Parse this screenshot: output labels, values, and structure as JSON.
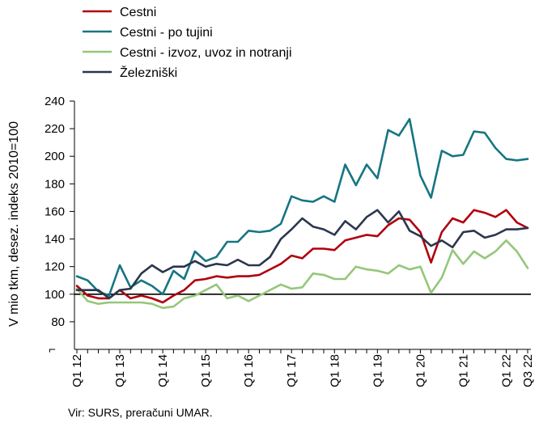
{
  "chart_data": {
    "type": "line",
    "ylabel": "V mio tkm, desez. indeks 2010=100",
    "ylim": [
      60,
      240
    ],
    "yticks": [
      80,
      100,
      120,
      140,
      160,
      180,
      200,
      220,
      240
    ],
    "ytick_labels": [
      "80",
      "100",
      "120",
      "140",
      "160",
      "180",
      "200",
      "220",
      "240"
    ],
    "y_break_symbol": "⌐",
    "x_tick_labels": [
      "Q1 12",
      "Q1 13",
      "Q1 14",
      "Q1 15",
      "Q1 16",
      "Q1 17",
      "Q1 18",
      "Q1 19",
      "Q1 20",
      "Q1 21",
      "Q1 22",
      "Q3 22"
    ],
    "x_tick_index": [
      0,
      4,
      8,
      12,
      16,
      20,
      24,
      28,
      32,
      36,
      40,
      42
    ],
    "n_points": 43,
    "reference_line": 100,
    "legend_position": "top-left",
    "series": [
      {
        "name": "Cestni",
        "color": "#b0000d",
        "values": [
          106,
          99,
          97,
          97,
          103,
          97,
          99,
          97,
          94,
          99,
          103,
          110,
          111,
          113,
          112,
          113,
          113,
          114,
          118,
          122,
          128,
          126,
          133,
          133,
          132,
          139,
          141,
          143,
          142,
          150,
          155,
          154,
          145,
          123,
          145,
          155,
          152,
          161,
          159,
          156,
          161,
          152,
          148
        ]
      },
      {
        "name": "Cestni - po tujini",
        "color": "#177583",
        "values": [
          113,
          110,
          102,
          99,
          121,
          105,
          110,
          106,
          100,
          117,
          111,
          131,
          124,
          127,
          138,
          138,
          146,
          145,
          146,
          151,
          171,
          168,
          167,
          171,
          167,
          194,
          179,
          194,
          184,
          219,
          215,
          227,
          186,
          170,
          204,
          200,
          201,
          218,
          217,
          206,
          198,
          197,
          198
        ]
      },
      {
        "name": "Cestni - izvoz, uvoz in notranji",
        "color": "#94c77a",
        "values": [
          104,
          95,
          93,
          94,
          94,
          94,
          94,
          93,
          90,
          91,
          97,
          99,
          103,
          107,
          97,
          99,
          95,
          99,
          103,
          107,
          104,
          105,
          115,
          114,
          111,
          111,
          120,
          118,
          117,
          115,
          121,
          118,
          120,
          101,
          112,
          132,
          122,
          131,
          126,
          131,
          139,
          131,
          119
        ]
      },
      {
        "name": "Železniški",
        "color": "#2b364d",
        "values": [
          103,
          103,
          103,
          97,
          103,
          104,
          115,
          121,
          116,
          120,
          120,
          124,
          120,
          122,
          121,
          125,
          121,
          121,
          127,
          140,
          147,
          155,
          149,
          147,
          143,
          153,
          147,
          156,
          161,
          152,
          160,
          146,
          142,
          135,
          139,
          134,
          145,
          146,
          141,
          143,
          147,
          147,
          148
        ]
      }
    ]
  },
  "source_text": "Vir: SURS, preračuni UMAR."
}
